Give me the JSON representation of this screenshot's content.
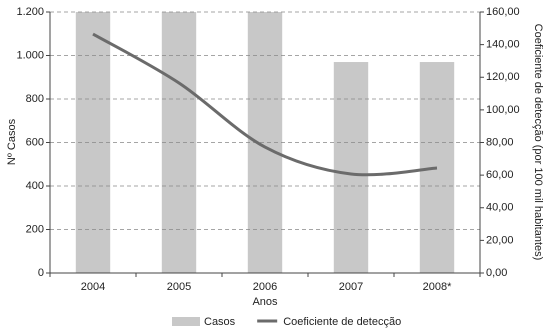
{
  "chart_data": {
    "type": "bar-line",
    "x_label": "Anos",
    "y_label": "Nº Casos",
    "y2_label": "Coeficiente de detecção (por 100 mil habitantes)",
    "categories": [
      "2004",
      "2005",
      "2006",
      "2007",
      "2008*"
    ],
    "series": [
      {
        "name": "Casos",
        "type": "bar",
        "color": "#c8c8c8",
        "values": [
          1200,
          1200,
          1200,
          970,
          970
        ]
      },
      {
        "name": "Coeficiente de detecção",
        "type": "line",
        "axis": "y2",
        "color": "#6b6b6b",
        "values": [
          146.5,
          116.5,
          77.2,
          60.7,
          64.4
        ]
      }
    ],
    "ylim": [
      0,
      1200
    ],
    "yticks": [
      0,
      200,
      400,
      600,
      800,
      {
        "value": 1000,
        "label": "1.000"
      },
      {
        "value": 1200,
        "label": "1.200"
      }
    ],
    "y2lim": [
      0,
      160
    ],
    "y2ticks": [
      {
        "value": 0,
        "label": "0,00"
      },
      {
        "value": 20,
        "label": "20,00"
      },
      {
        "value": 40,
        "label": "40,00"
      },
      {
        "value": 60,
        "label": "60,00"
      },
      {
        "value": 80,
        "label": "80,00"
      },
      {
        "value": 100,
        "label": "100,00"
      },
      {
        "value": 120,
        "label": "120,00"
      },
      {
        "value": 140,
        "label": "140,00"
      },
      {
        "value": 160,
        "label": "160,00"
      }
    ],
    "grid": true,
    "legend": "bottom"
  }
}
